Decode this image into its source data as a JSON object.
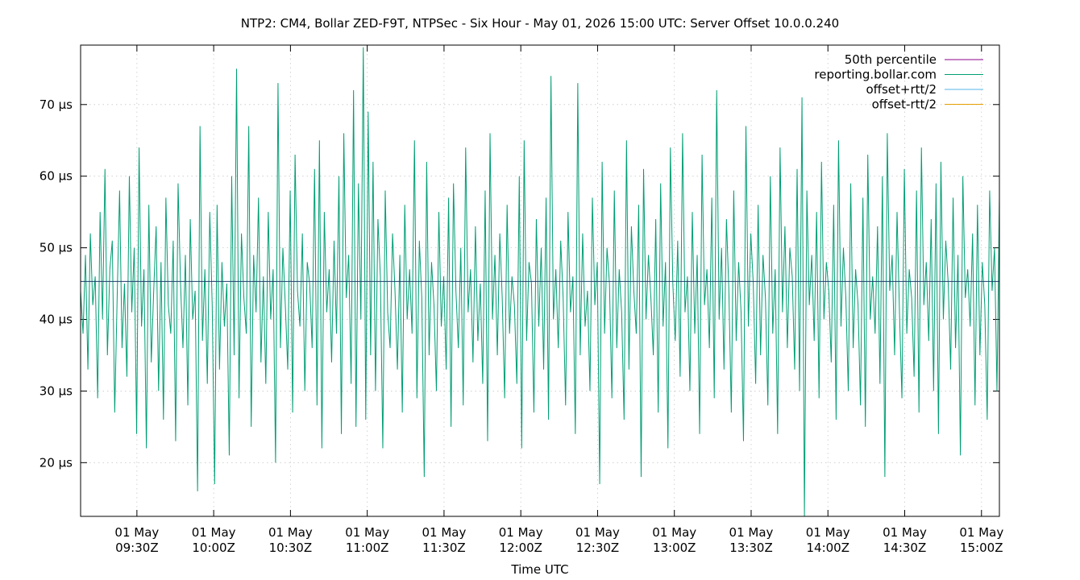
{
  "chart_data": {
    "type": "line",
    "title": "NTP2: CM4, Bollar ZED-F9T, NTPSec - Six Hour - May 01, 2026 15:00 UTC: Server Offset 10.0.0.240",
    "xlabel": "Time UTC",
    "ylabel": "",
    "x_range": [
      "09:08Z",
      "15:07Z"
    ],
    "ylim": [
      12.5,
      78.3
    ],
    "y_ticks": [
      {
        "value": 20,
        "label": "20 µs"
      },
      {
        "value": 30,
        "label": "30 µs"
      },
      {
        "value": 40,
        "label": "40 µs"
      },
      {
        "value": 50,
        "label": "50 µs"
      },
      {
        "value": 60,
        "label": "60 µs"
      },
      {
        "value": 70,
        "label": "70 µs"
      }
    ],
    "x_ticks": [
      {
        "time": "09:30Z",
        "line1": "01 May",
        "line2": "09:30Z"
      },
      {
        "time": "10:00Z",
        "line1": "01 May",
        "line2": "10:00Z"
      },
      {
        "time": "10:30Z",
        "line1": "01 May",
        "line2": "10:30Z"
      },
      {
        "time": "11:00Z",
        "line1": "01 May",
        "line2": "11:00Z"
      },
      {
        "time": "11:30Z",
        "line1": "01 May",
        "line2": "11:30Z"
      },
      {
        "time": "12:00Z",
        "line1": "01 May",
        "line2": "12:00Z"
      },
      {
        "time": "12:30Z",
        "line1": "01 May",
        "line2": "12:30Z"
      },
      {
        "time": "13:00Z",
        "line1": "01 May",
        "line2": "13:00Z"
      },
      {
        "time": "13:30Z",
        "line1": "01 May",
        "line2": "13:30Z"
      },
      {
        "time": "14:00Z",
        "line1": "01 May",
        "line2": "14:00Z"
      },
      {
        "time": "14:30Z",
        "line1": "01 May",
        "line2": "14:30Z"
      },
      {
        "time": "15:00Z",
        "line1": "01 May",
        "line2": "15:00Z"
      }
    ],
    "grid": true,
    "legend_position": "top-right",
    "series": [
      {
        "name": "50th percentile",
        "color": "#8b008b",
        "kind": "constant",
        "value": 45.3
      },
      {
        "name": "reporting.bollar.com",
        "color": "#009e73",
        "kind": "samples",
        "samples": [
          44,
          38,
          49,
          33,
          52,
          42,
          46,
          29,
          55,
          40,
          61,
          35,
          47,
          51,
          27,
          43,
          58,
          36,
          45,
          32,
          60,
          41,
          50,
          24,
          64,
          39,
          47,
          22,
          56,
          34,
          44,
          53,
          30,
          48,
          26,
          57,
          42,
          38,
          51,
          23,
          59,
          45,
          36,
          49,
          28,
          54,
          40,
          44,
          16,
          67,
          37,
          47,
          31,
          55,
          42,
          17,
          56,
          33,
          48,
          39,
          45,
          21,
          60,
          35,
          75,
          29,
          52,
          43,
          38,
          67,
          25,
          49,
          41,
          57,
          34,
          46,
          31,
          55,
          40,
          47,
          20,
          73,
          36,
          50,
          42,
          33,
          58,
          27,
          63,
          44,
          39,
          52,
          30,
          48,
          45,
          36,
          61,
          28,
          65,
          22,
          55,
          41,
          47,
          34,
          51,
          38,
          60,
          24,
          66,
          43,
          49,
          31,
          72,
          25,
          59,
          40,
          78,
          26,
          69,
          35,
          62,
          30,
          54,
          46,
          22,
          58,
          41,
          36,
          52,
          44,
          33,
          49,
          27,
          56,
          40,
          47,
          38,
          65,
          29,
          51,
          43,
          18,
          62,
          35,
          48,
          42,
          30,
          55,
          39,
          46,
          33,
          57,
          25,
          59,
          44,
          36,
          50,
          28,
          64,
          41,
          47,
          34,
          53,
          37,
          45,
          31,
          58,
          23,
          66,
          40,
          49,
          35,
          52,
          43,
          29,
          56,
          38,
          46,
          42,
          31,
          60,
          22,
          65,
          37,
          48,
          45,
          27,
          54,
          39,
          50,
          33,
          57,
          26,
          74,
          40,
          47,
          36,
          51,
          43,
          28,
          55,
          41,
          46,
          24,
          73,
          35,
          52,
          39,
          44,
          30,
          57,
          42,
          48,
          17,
          62,
          38,
          50,
          45,
          29,
          58,
          36,
          47,
          41,
          26,
          65,
          33,
          53,
          44,
          38,
          56,
          18,
          61,
          40,
          49,
          43,
          35,
          54,
          27,
          59,
          39,
          48,
          22,
          64,
          45,
          37,
          51,
          32,
          66,
          41,
          46,
          30,
          55,
          38,
          49,
          24,
          63,
          42,
          47,
          36,
          57,
          29,
          72,
          40,
          50,
          33,
          54,
          44,
          27,
          58,
          37,
          48,
          41,
          23,
          67,
          39,
          52,
          45,
          31,
          56,
          35,
          49,
          43,
          28,
          60,
          38,
          47,
          24,
          64,
          41,
          53,
          36,
          50,
          46,
          33,
          61,
          30,
          71,
          12,
          58,
          42,
          49,
          37,
          55,
          29,
          62,
          40,
          48,
          44,
          34,
          56,
          26,
          65,
          39,
          50,
          43,
          30,
          59,
          36,
          47,
          42,
          28,
          57,
          25,
          63,
          40,
          46,
          38,
          53,
          31,
          60,
          18,
          66,
          44,
          49,
          35,
          55,
          41,
          29,
          61,
          38,
          47,
          43,
          32,
          58,
          27,
          64,
          42,
          48,
          37,
          54,
          30,
          59,
          24,
          62,
          40,
          51,
          45,
          33,
          57,
          36,
          49,
          21,
          60,
          43,
          47,
          39,
          52,
          28,
          56,
          35,
          48,
          42,
          26,
          58,
          44,
          50,
          30,
          57
        ]
      },
      {
        "name": "offset+rtt/2",
        "color": "#56b4e9",
        "kind": "none"
      },
      {
        "name": "offset-rtt/2",
        "color": "#e69f00",
        "kind": "none"
      }
    ]
  }
}
